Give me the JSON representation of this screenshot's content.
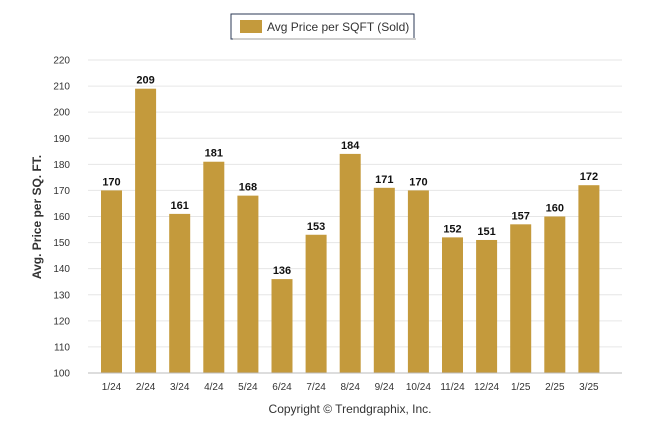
{
  "colors": {
    "bar": "#C49A3C",
    "grid": "#E6E6E6",
    "axis": "#BBBBBB",
    "legend_border": "#2B3A55"
  },
  "footer": {
    "copyright": "Copyright © Trendgraphix, Inc."
  },
  "chart_data": {
    "type": "bar",
    "title": "",
    "xlabel": "",
    "ylabel": "Avg. Price per SQ. FT.",
    "ylim": [
      100,
      220
    ],
    "ytick_step": 10,
    "yticks": [
      "100",
      "110",
      "120",
      "130",
      "140",
      "150",
      "160",
      "170",
      "180",
      "190",
      "200",
      "210",
      "220"
    ],
    "grid": true,
    "legend": {
      "placement": "top-center",
      "entries": [
        "Avg Price per SQFT (Sold)"
      ]
    },
    "categories": [
      "1/24",
      "2/24",
      "3/24",
      "4/24",
      "5/24",
      "6/24",
      "7/24",
      "8/24",
      "9/24",
      "10/24",
      "11/24",
      "12/24",
      "1/25",
      "2/25",
      "3/25"
    ],
    "series": [
      {
        "name": "Avg Price per SQFT (Sold)",
        "values": [
          170,
          209,
          161,
          181,
          168,
          136,
          153,
          184,
          171,
          170,
          152,
          151,
          157,
          160,
          172
        ],
        "labels": [
          "170",
          "209",
          "161",
          "181",
          "168",
          "136",
          "153",
          "184",
          "171",
          "170",
          "152",
          "151",
          "157",
          "160",
          "172"
        ]
      }
    ]
  }
}
